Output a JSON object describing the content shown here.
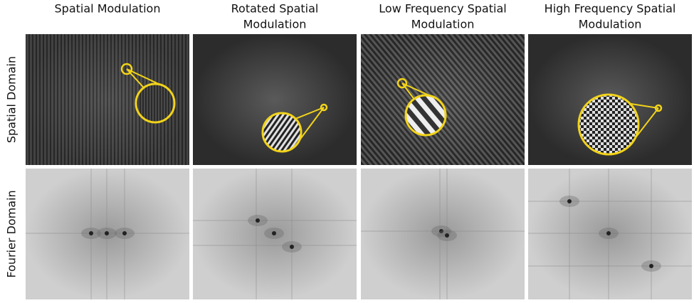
{
  "columns": [
    [
      "Spatial Modulation"
    ],
    [
      "Rotated Spatial",
      "Modulation"
    ],
    [
      "Low Frequency Spatial",
      "Modulation"
    ],
    [
      "High Frequency Spatial",
      "Modulation"
    ]
  ],
  "rows": [
    "Spatial Domain",
    "Fourier Domain"
  ]
}
